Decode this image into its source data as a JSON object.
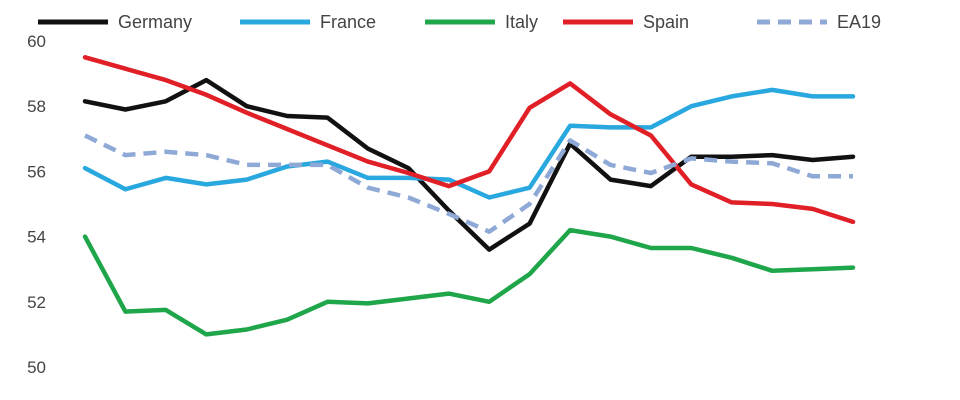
{
  "chart_data": {
    "type": "line",
    "title": "",
    "xlabel": "",
    "ylabel": "",
    "ylim": [
      50,
      60
    ],
    "yticks": [
      50,
      52,
      54,
      56,
      58,
      60
    ],
    "grid": false,
    "legend_position": "top",
    "categories": [
      "",
      "",
      "",
      "",
      "",
      "",
      "",
      "",
      "",
      "",
      "",
      "",
      "",
      "",
      "",
      "",
      "",
      "",
      "",
      ""
    ],
    "series": [
      {
        "name": "Germany",
        "color": "#111111",
        "dash": "solid",
        "values": [
          58.15,
          57.9,
          58.15,
          58.8,
          58.0,
          57.7,
          57.65,
          56.7,
          56.1,
          54.8,
          53.6,
          54.4,
          56.85,
          55.75,
          55.55,
          56.45,
          56.45,
          56.5,
          56.35,
          56.45
        ]
      },
      {
        "name": "France",
        "color": "#29a8df",
        "dash": "solid",
        "values": [
          56.1,
          55.45,
          55.8,
          55.6,
          55.75,
          56.15,
          56.3,
          55.8,
          55.8,
          55.75,
          55.2,
          55.5,
          57.4,
          57.35,
          57.35,
          58.0,
          58.3,
          58.5,
          58.3,
          58.3
        ]
      },
      {
        "name": "Italy",
        "color": "#1fa64a",
        "dash": "solid",
        "values": [
          54.0,
          51.7,
          51.75,
          51.0,
          51.15,
          51.45,
          52.0,
          51.95,
          52.1,
          52.25,
          52.0,
          52.85,
          54.2,
          54.0,
          53.65,
          53.65,
          53.35,
          52.95,
          53.0,
          53.05
        ]
      },
      {
        "name": "Spain",
        "color": "#e11f26",
        "dash": "solid",
        "values": [
          59.5,
          59.15,
          58.8,
          58.35,
          57.8,
          57.3,
          56.8,
          56.3,
          55.95,
          55.55,
          56.0,
          57.95,
          58.7,
          57.75,
          57.1,
          55.6,
          55.05,
          55.0,
          54.85,
          54.45
        ]
      },
      {
        "name": "EA19",
        "color": "#8fa9d6",
        "dash": "dashed",
        "values": [
          57.1,
          56.5,
          56.6,
          56.5,
          56.2,
          56.2,
          56.2,
          55.5,
          55.2,
          54.7,
          54.15,
          55.0,
          56.95,
          56.2,
          55.95,
          56.4,
          56.3,
          56.25,
          55.85,
          55.85
        ]
      }
    ]
  }
}
